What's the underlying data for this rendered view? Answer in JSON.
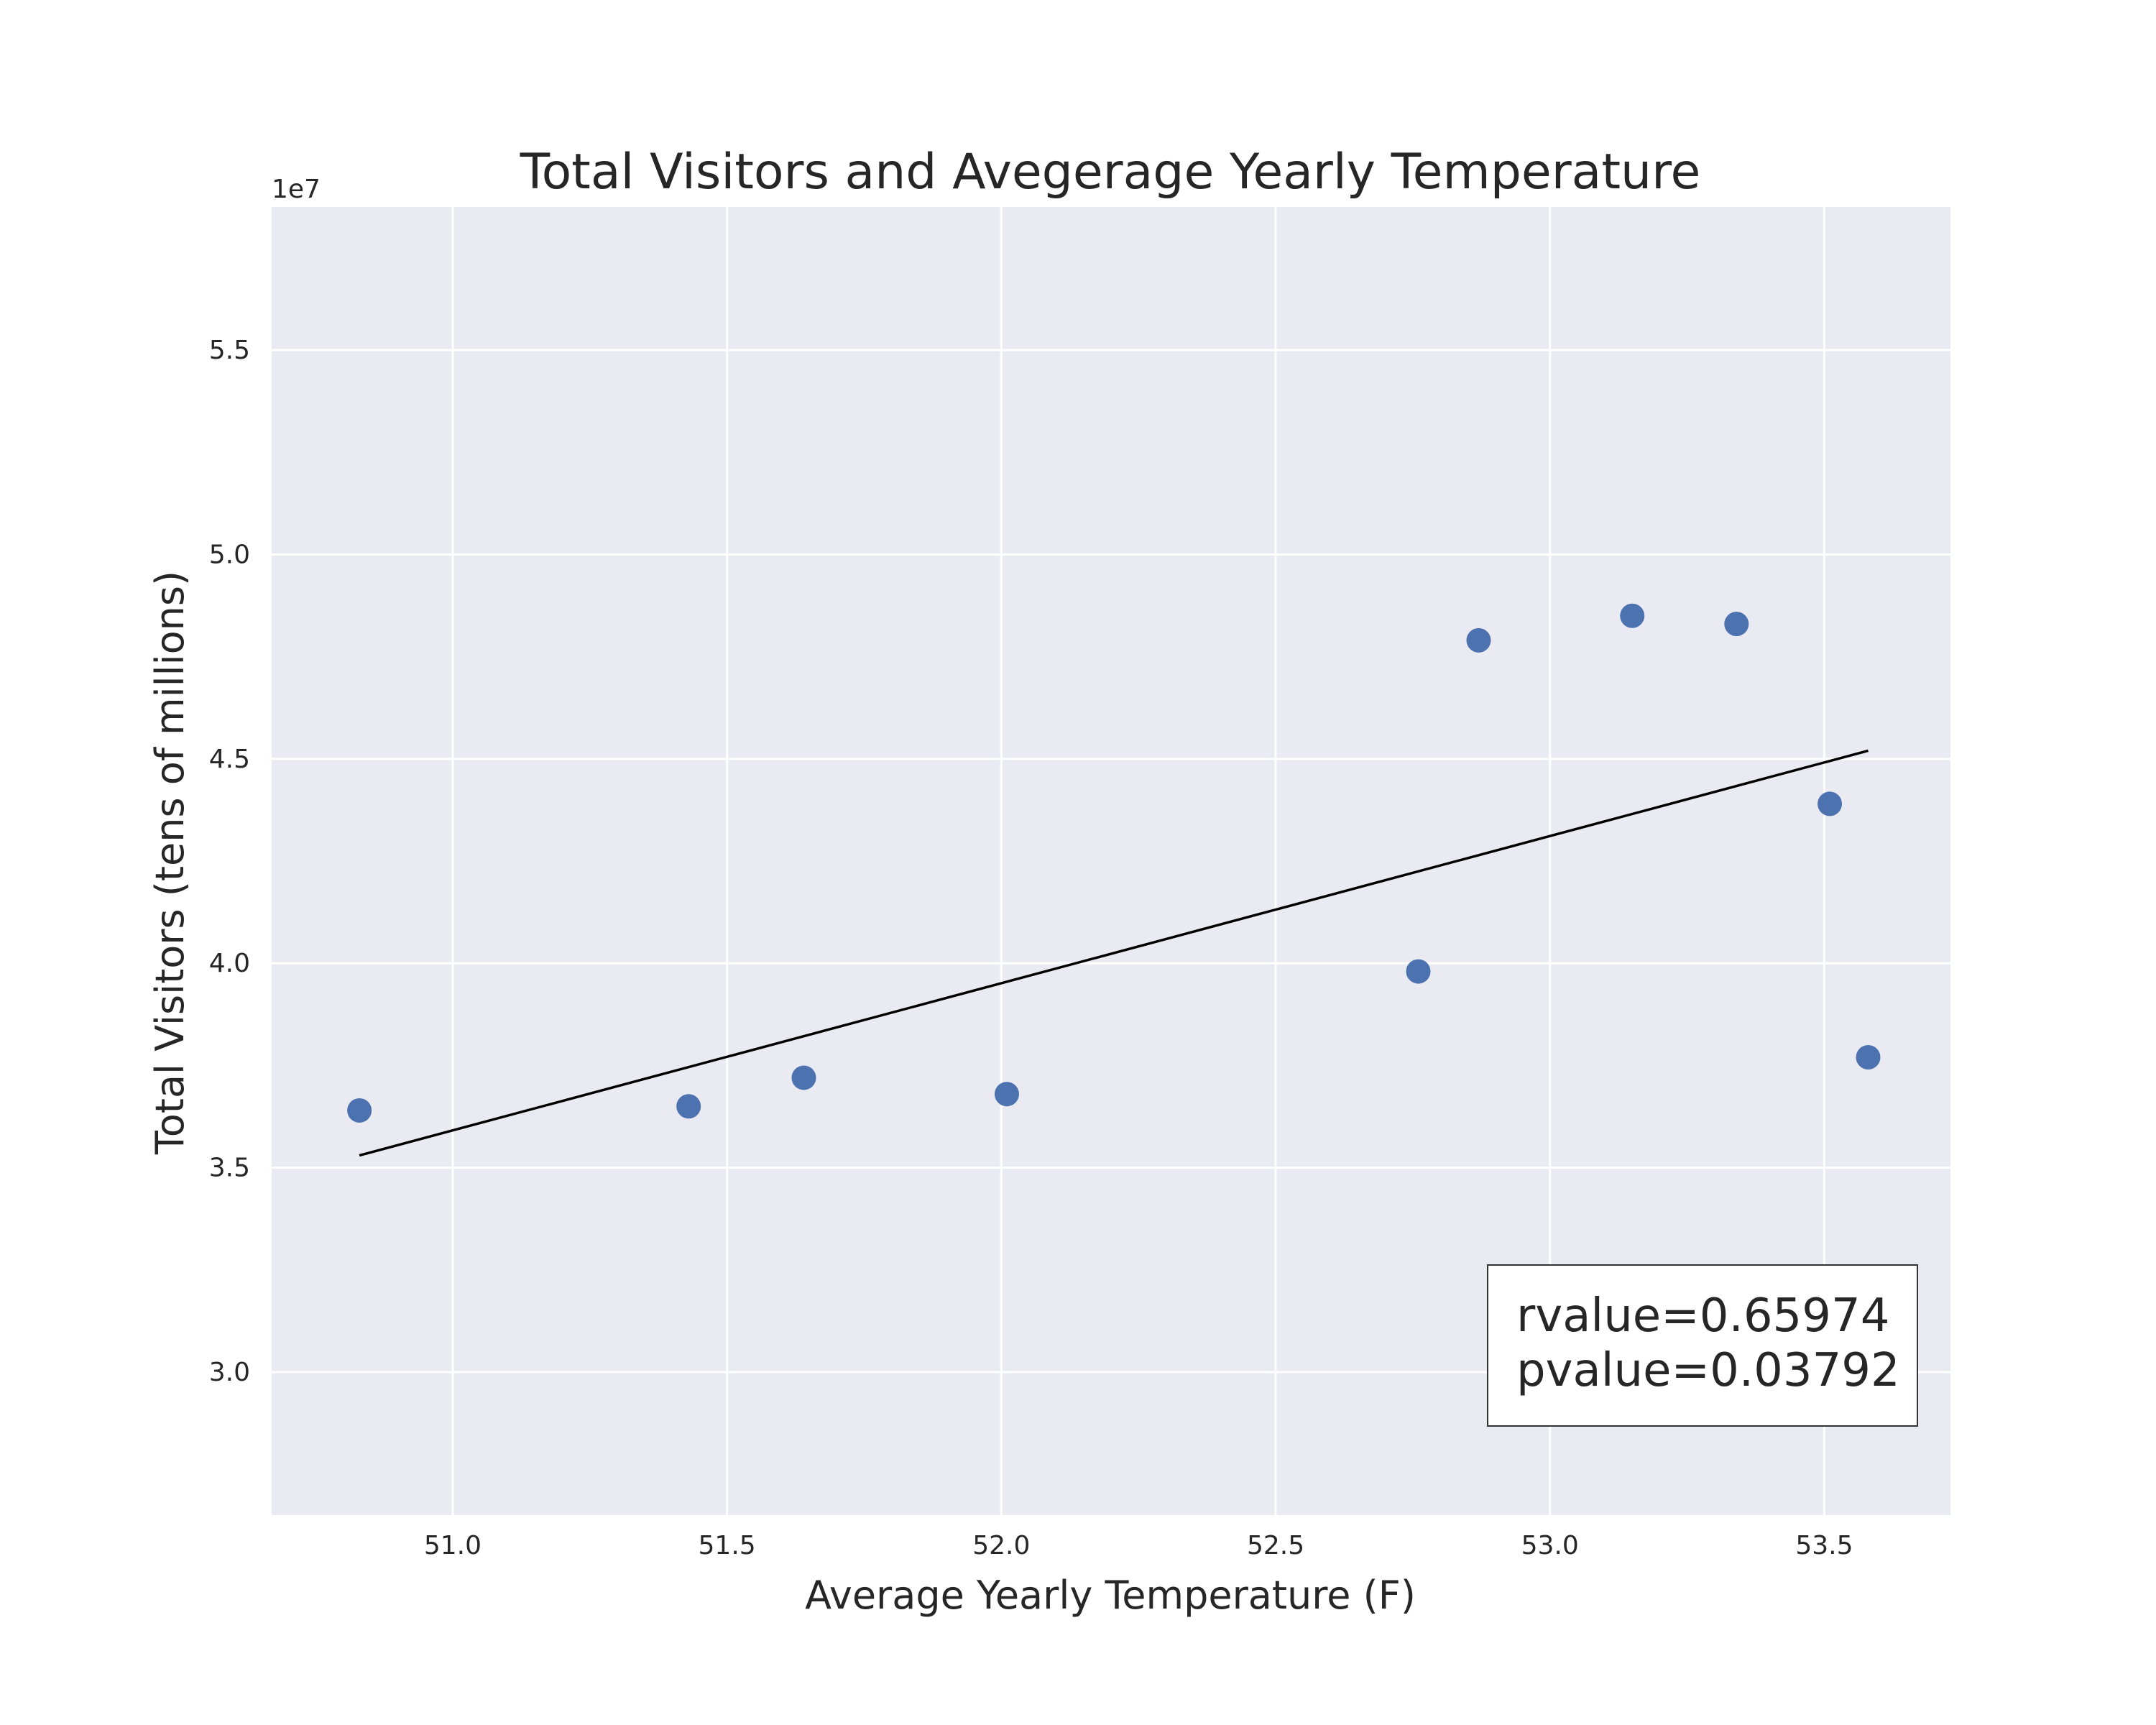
{
  "chart_data": {
    "type": "scatter",
    "title": "Total Visitors and Avegerage Yearly Temperature",
    "xlabel": "Average Yearly Temperature (F)",
    "ylabel": "Total Visitors (tens of millions)",
    "y_offset_label": "1e7",
    "xlim": [
      50.67,
      53.73
    ],
    "ylim": [
      2.65,
      5.85
    ],
    "x_ticks": [
      51.0,
      51.5,
      52.0,
      52.5,
      53.0,
      53.5
    ],
    "x_tick_labels": [
      "51.0",
      "51.5",
      "52.0",
      "52.5",
      "53.0",
      "53.5"
    ],
    "y_ticks": [
      3.0,
      3.5,
      4.0,
      4.5,
      5.0,
      5.5
    ],
    "y_tick_labels": [
      "3.0",
      "3.5",
      "4.0",
      "4.5",
      "5.0",
      "5.5"
    ],
    "grid": true,
    "point_color": "#4C72B0",
    "background_color": "#EAEAF2",
    "points": [
      {
        "x": 50.83,
        "y": 3.64
      },
      {
        "x": 51.43,
        "y": 3.65
      },
      {
        "x": 51.64,
        "y": 3.72
      },
      {
        "x": 52.01,
        "y": 3.68
      },
      {
        "x": 52.76,
        "y": 3.98
      },
      {
        "x": 52.87,
        "y": 4.79
      },
      {
        "x": 53.15,
        "y": 4.85
      },
      {
        "x": 53.34,
        "y": 4.83
      },
      {
        "x": 53.51,
        "y": 4.39
      },
      {
        "x": 53.58,
        "y": 3.77
      }
    ],
    "regression_line": {
      "x": [
        50.83,
        53.58
      ],
      "y": [
        3.53,
        4.52
      ],
      "color": "#000000"
    },
    "annotation": {
      "rvalue_text": "rvalue=0.65974",
      "pvalue_text": "pvalue=0.03792",
      "placement": "bottom-right"
    }
  }
}
